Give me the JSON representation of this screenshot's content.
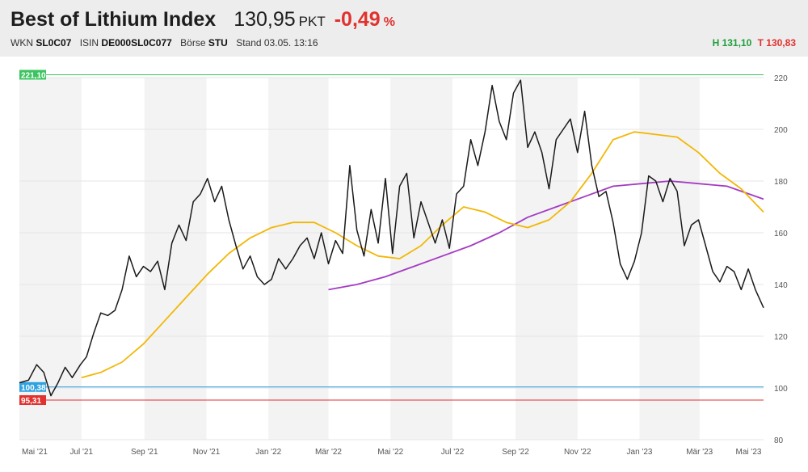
{
  "header": {
    "title": "Best of Lithium Index",
    "price": "130,95",
    "unit": "PKT",
    "change": "-0,49",
    "change_unit": "%",
    "wkn_label": "WKN",
    "wkn": "SL0C07",
    "isin_label": "ISIN",
    "isin": "DE000SL0C077",
    "exchange_label": "Börse",
    "exchange": "STU",
    "stand": "Stand 03.05. 13:16",
    "high": "H 131,10",
    "low": "T 130,83"
  },
  "colors": {
    "price_line": "#1a1a1a",
    "ma_short": "#f2b705",
    "ma_long": "#a43bc2",
    "high_line": "#3cc460",
    "start_line": "#2fa2e0",
    "low_line": "#e0322e",
    "band": "#f3f3f3",
    "grid": "#e4e4e4",
    "negative": "#e0322e",
    "positive": "#1f9e3a"
  },
  "chart_data": {
    "type": "line",
    "x_labels": [
      "Mai '21",
      "Jul '21",
      "Sep '21",
      "Nov '21",
      "Jan '22",
      "Mär '22",
      "Mai '22",
      "Jul '22",
      "Sep '22",
      "Nov '22",
      "Jan '23",
      "Mär '23",
      "Mai '23"
    ],
    "y_ticks": [
      80,
      100,
      120,
      140,
      160,
      180,
      200,
      220
    ],
    "ylim": [
      80,
      220
    ],
    "levels": [
      {
        "name": "high",
        "value": 221.1,
        "label": "221,10"
      },
      {
        "name": "start",
        "value": 100.38,
        "label": "100,38"
      },
      {
        "name": "low",
        "value": 95.31,
        "label": "95,31"
      }
    ],
    "series": [
      {
        "key": "price",
        "x": [
          "2021-05-01",
          "2021-05-10",
          "2021-05-18",
          "2021-05-25",
          "2021-06-01",
          "2021-06-08",
          "2021-06-15",
          "2021-06-22",
          "2021-06-30",
          "2021-07-06",
          "2021-07-13",
          "2021-07-20",
          "2021-07-27",
          "2021-08-03",
          "2021-08-10",
          "2021-08-17",
          "2021-08-24",
          "2021-08-31",
          "2021-09-07",
          "2021-09-14",
          "2021-09-21",
          "2021-09-28",
          "2021-10-05",
          "2021-10-12",
          "2021-10-19",
          "2021-10-26",
          "2021-11-02",
          "2021-11-09",
          "2021-11-16",
          "2021-11-23",
          "2021-11-30",
          "2021-12-07",
          "2021-12-14",
          "2021-12-21",
          "2021-12-28",
          "2022-01-04",
          "2022-01-11",
          "2022-01-18",
          "2022-01-25",
          "2022-02-01",
          "2022-02-08",
          "2022-02-15",
          "2022-02-22",
          "2022-03-01",
          "2022-03-08",
          "2022-03-15",
          "2022-03-22",
          "2022-03-29",
          "2022-04-05",
          "2022-04-12",
          "2022-04-19",
          "2022-04-26",
          "2022-05-03",
          "2022-05-10",
          "2022-05-17",
          "2022-05-24",
          "2022-05-31",
          "2022-06-07",
          "2022-06-14",
          "2022-06-21",
          "2022-06-28",
          "2022-07-05",
          "2022-07-12",
          "2022-07-19",
          "2022-07-26",
          "2022-08-02",
          "2022-08-09",
          "2022-08-16",
          "2022-08-23",
          "2022-08-30",
          "2022-09-06",
          "2022-09-13",
          "2022-09-20",
          "2022-09-27",
          "2022-10-04",
          "2022-10-11",
          "2022-10-18",
          "2022-10-25",
          "2022-11-01",
          "2022-11-08",
          "2022-11-15",
          "2022-11-22",
          "2022-11-29",
          "2022-12-06",
          "2022-12-13",
          "2022-12-20",
          "2022-12-27",
          "2023-01-03",
          "2023-01-10",
          "2023-01-17",
          "2023-01-24",
          "2023-01-31",
          "2023-02-07",
          "2023-02-14",
          "2023-02-21",
          "2023-02-28",
          "2023-03-07",
          "2023-03-14",
          "2023-03-21",
          "2023-03-28",
          "2023-04-04",
          "2023-04-11",
          "2023-04-18",
          "2023-04-25",
          "2023-05-03"
        ],
        "y": [
          102,
          103,
          109,
          106,
          97,
          102,
          108,
          104,
          109,
          112,
          121,
          129,
          128,
          130,
          138,
          151,
          143,
          147,
          145,
          149,
          138,
          156,
          163,
          157,
          172,
          175,
          181,
          172,
          178,
          165,
          155,
          146,
          151,
          143,
          140,
          142,
          150,
          146,
          150,
          155,
          158,
          150,
          160,
          148,
          157,
          152,
          186,
          161,
          151,
          169,
          156,
          181,
          152,
          178,
          183,
          158,
          172,
          164,
          156,
          165,
          154,
          175,
          178,
          196,
          186,
          199,
          217,
          203,
          196,
          214,
          219,
          193,
          199,
          191,
          177,
          196,
          200,
          204,
          191,
          207,
          186,
          174,
          176,
          164,
          148,
          142,
          149,
          160,
          182,
          180,
          172,
          181,
          176,
          155,
          163,
          165,
          155,
          145,
          141,
          147,
          145,
          138,
          146,
          138,
          131
        ]
      },
      {
        "key": "ma_short",
        "x": [
          "2021-07-01",
          "2021-07-20",
          "2021-08-10",
          "2021-08-31",
          "2021-09-21",
          "2021-10-12",
          "2021-11-02",
          "2021-11-23",
          "2021-12-14",
          "2022-01-04",
          "2022-01-25",
          "2022-02-15",
          "2022-03-08",
          "2022-03-29",
          "2022-04-19",
          "2022-05-10",
          "2022-05-31",
          "2022-06-21",
          "2022-07-12",
          "2022-08-02",
          "2022-08-23",
          "2022-09-13",
          "2022-10-04",
          "2022-10-25",
          "2022-11-15",
          "2022-12-06",
          "2022-12-27",
          "2023-01-17",
          "2023-02-07",
          "2023-02-28",
          "2023-03-21",
          "2023-04-11",
          "2023-05-03"
        ],
        "y": [
          104,
          106,
          110,
          117,
          126,
          135,
          144,
          152,
          158,
          162,
          164,
          164,
          160,
          155,
          151,
          150,
          155,
          163,
          170,
          168,
          164,
          162,
          165,
          172,
          183,
          196,
          199,
          198,
          197,
          191,
          183,
          177,
          168
        ]
      },
      {
        "key": "ma_long",
        "x": [
          "2022-03-01",
          "2022-03-29",
          "2022-04-26",
          "2022-05-24",
          "2022-06-21",
          "2022-07-19",
          "2022-08-16",
          "2022-09-13",
          "2022-10-11",
          "2022-11-08",
          "2022-12-06",
          "2023-01-03",
          "2023-01-31",
          "2023-02-28",
          "2023-03-28",
          "2023-05-03"
        ],
        "y": [
          138,
          140,
          143,
          147,
          151,
          155,
          160,
          166,
          170,
          174,
          178,
          179,
          180,
          179,
          178,
          173
        ]
      }
    ]
  }
}
